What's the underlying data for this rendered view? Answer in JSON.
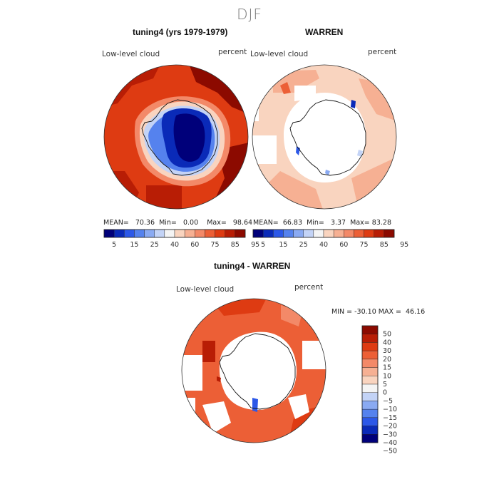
{
  "figure": {
    "season": "DJF"
  },
  "panels": [
    {
      "id": "model",
      "title": "tuning4 (yrs 1979-1979)",
      "variable": "Low-level cloud",
      "units": "percent",
      "stats": {
        "mean_label": "MEAN=",
        "mean": "70.36",
        "min_label": "Min=",
        "min": "0.00",
        "max_label": "Max=",
        "max": "98.64"
      }
    },
    {
      "id": "obs",
      "title": "WARREN",
      "variable": "Low-level cloud",
      "units": "percent",
      "stats": {
        "mean_label": "MEAN=",
        "mean": "66.83",
        "min_label": "Min=",
        "min": "3.37",
        "max_label": "Max=",
        "max": "83.28"
      }
    },
    {
      "id": "diff",
      "title": "tuning4 - WARREN",
      "variable": "Low-level cloud",
      "units": "percent",
      "stats": {
        "min_label": "MIN =",
        "min": "-30.10",
        "max_label": "MAX =",
        "max": "46.16"
      }
    }
  ],
  "colorbars": {
    "absolute": {
      "labels": [
        "5",
        "15",
        "25",
        "40",
        "60",
        "75",
        "85",
        "95"
      ],
      "colors": [
        "#00007a",
        "#0a2ab8",
        "#2c58e8",
        "#5582ee",
        "#8aaaf2",
        "#c3d3f6",
        "#f4f4f4",
        "#f9d4bf",
        "#f6b093",
        "#f38968",
        "#ec5f36",
        "#de3b12",
        "#b81d05",
        "#8c0a00"
      ]
    },
    "difference": {
      "labels": [
        "50",
        "40",
        "30",
        "20",
        "15",
        "10",
        "5",
        "0",
        "−5",
        "−10",
        "−15",
        "−20",
        "−30",
        "−40",
        "−50"
      ],
      "colors": [
        "#8c0a00",
        "#b81d05",
        "#de3b12",
        "#ec5f36",
        "#f38968",
        "#f6b093",
        "#f9d4bf",
        "#f4f4f4",
        "#c3d3f6",
        "#8aaaf2",
        "#5582ee",
        "#2c58e8",
        "#0a2ab8",
        "#00007a"
      ]
    }
  }
}
